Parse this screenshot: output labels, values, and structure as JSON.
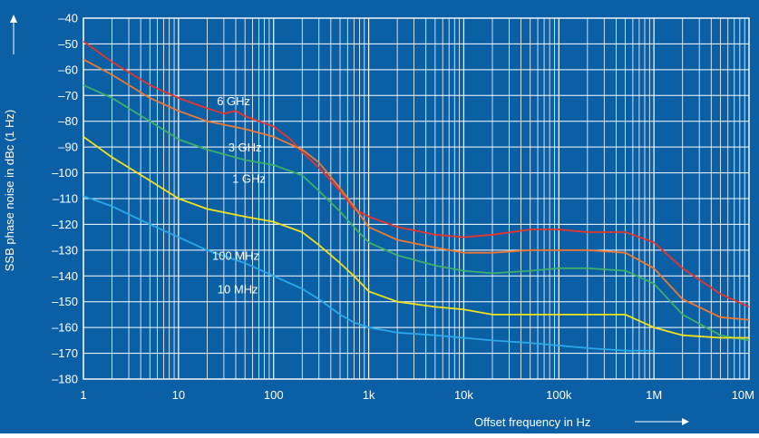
{
  "chart_data": {
    "type": "line",
    "x_scale": "log",
    "xlabel": "Offset frequency in Hz",
    "ylabel": "SSB phase noise in dBc (1 Hz)",
    "xlim": [
      1,
      10000000
    ],
    "ylim": [
      -180,
      -40
    ],
    "grid": true,
    "legend": "inline labels",
    "x_ticks": [
      {
        "value": 1,
        "label": "1"
      },
      {
        "value": 10,
        "label": "10"
      },
      {
        "value": 100,
        "label": "100"
      },
      {
        "value": 1000,
        "label": "1k"
      },
      {
        "value": 10000,
        "label": "10k"
      },
      {
        "value": 100000,
        "label": "100k"
      },
      {
        "value": 1000000,
        "label": "1M"
      },
      {
        "value": 10000000,
        "label": "10M"
      }
    ],
    "y_ticks": [
      {
        "value": -40,
        "label": "–40"
      },
      {
        "value": -50,
        "label": "–50"
      },
      {
        "value": -60,
        "label": "–60"
      },
      {
        "value": -70,
        "label": "–70"
      },
      {
        "value": -80,
        "label": "–80"
      },
      {
        "value": -90,
        "label": "–90"
      },
      {
        "value": -100,
        "label": "–100"
      },
      {
        "value": -110,
        "label": "–110"
      },
      {
        "value": -120,
        "label": "–120"
      },
      {
        "value": -130,
        "label": "–130"
      },
      {
        "value": -140,
        "label": "–140"
      },
      {
        "value": -150,
        "label": "–150"
      },
      {
        "value": -160,
        "label": "–160"
      },
      {
        "value": -170,
        "label": "–170"
      },
      {
        "value": -180,
        "label": "–180"
      }
    ],
    "colors": {
      "background": "#0B5FA5",
      "grid": "#ffffff",
      "text": "#ffffff"
    },
    "series": [
      {
        "name": "6 GHz",
        "color": "#E8342A",
        "x": [
          1,
          2,
          5,
          10,
          20,
          30,
          40,
          50,
          70,
          100,
          150,
          200,
          300,
          500,
          700,
          1000,
          2000,
          5000,
          10000,
          20000,
          50000,
          100000,
          200000,
          500000,
          1000000,
          2000000,
          5000000,
          10000000
        ],
        "y": [
          -49,
          -57,
          -66,
          -71,
          -75,
          -77,
          -76,
          -78,
          -80,
          -82,
          -87,
          -92,
          -98,
          -107,
          -114,
          -117,
          -121,
          -124,
          -125,
          -124,
          -122,
          -122,
          -123,
          -123,
          -127,
          -137,
          -147,
          -152
        ]
      },
      {
        "name": "3 GHz",
        "color": "#F07830",
        "x": [
          1,
          2,
          5,
          10,
          20,
          50,
          100,
          200,
          300,
          500,
          700,
          1000,
          2000,
          5000,
          10000,
          20000,
          50000,
          100000,
          200000,
          500000,
          1000000,
          2000000,
          5000000,
          10000000
        ],
        "y": [
          -56,
          -62,
          -71,
          -76,
          -80,
          -83,
          -86,
          -91,
          -96,
          -106,
          -113,
          -121,
          -126,
          -129,
          -131,
          -131,
          -130,
          -130,
          -130,
          -131,
          -137,
          -149,
          -156,
          -157
        ]
      },
      {
        "name": "1 GHz",
        "color": "#3DB06B",
        "x": [
          1,
          2,
          5,
          10,
          20,
          50,
          100,
          200,
          300,
          500,
          700,
          1000,
          2000,
          5000,
          10000,
          20000,
          50000,
          100000,
          200000,
          500000,
          1000000,
          2000000,
          5000000,
          10000000
        ],
        "y": [
          -66,
          -71,
          -80,
          -87,
          -91,
          -95,
          -97,
          -101,
          -107,
          -115,
          -121,
          -127,
          -132,
          -136,
          -138,
          -139,
          -138,
          -137,
          -137,
          -138,
          -143,
          -155,
          -163,
          -165
        ]
      },
      {
        "name": "100 MHz",
        "color": "#F2E21A",
        "x": [
          1,
          2,
          5,
          10,
          20,
          50,
          100,
          200,
          300,
          500,
          700,
          1000,
          2000,
          5000,
          10000,
          20000,
          50000,
          100000,
          200000,
          500000,
          1000000,
          2000000,
          5000000,
          10000000
        ],
        "y": [
          -86,
          -94,
          -103,
          -110,
          -114,
          -117,
          -119,
          -123,
          -128,
          -135,
          -140,
          -146,
          -150,
          -152,
          -153,
          -155,
          -155,
          -155,
          -155,
          -155,
          -160,
          -163,
          -164,
          -164
        ]
      },
      {
        "name": "10 MHz",
        "color": "#2AA8E8",
        "x": [
          1,
          2,
          5,
          10,
          20,
          50,
          100,
          200,
          300,
          500,
          700,
          1000,
          2000,
          5000,
          10000,
          20000,
          50000,
          100000,
          200000,
          500000,
          1000000
        ],
        "y": [
          -109,
          -113,
          -120,
          -125,
          -130,
          -135,
          -140,
          -145,
          -149,
          -155,
          -158,
          -160,
          -162,
          -163,
          -164,
          -165,
          -166,
          -167,
          -168,
          -169,
          -169
        ]
      }
    ]
  }
}
